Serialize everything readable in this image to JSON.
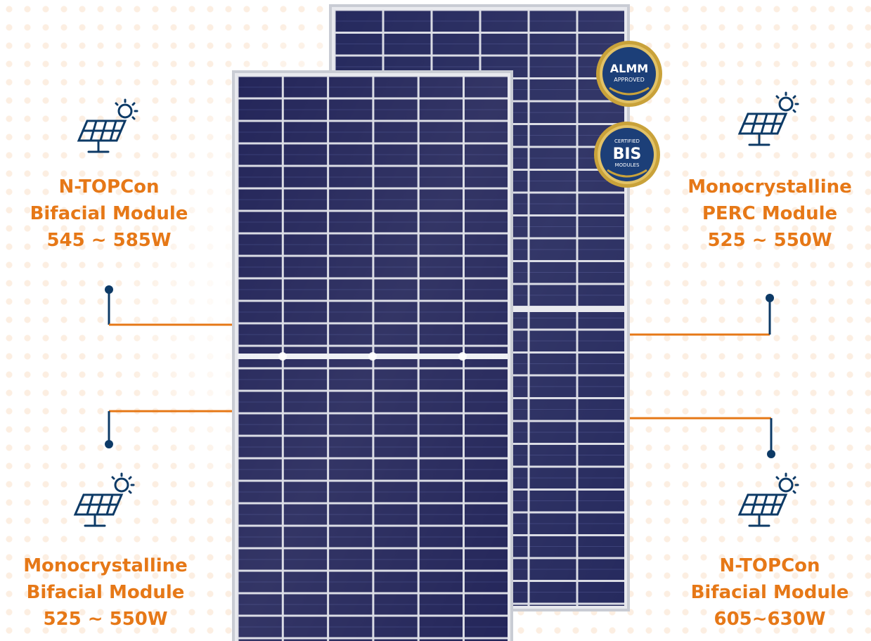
{
  "modules": [
    {
      "lines": [
        "N-TOPCon",
        "Bifacial Module",
        "545 ~ 585W"
      ],
      "icon": "solar-panel-sun-icon"
    },
    {
      "lines": [
        "Monocrystalline",
        "PERC Module",
        "525 ~ 550W"
      ],
      "icon": "solar-panel-sun-icon"
    },
    {
      "lines": [
        "Monocrystalline",
        "Bifacial Module",
        "525 ~ 550W"
      ],
      "icon": "solar-panel-sun-icon"
    },
    {
      "lines": [
        "N-TOPCon",
        "Bifacial Module",
        "605~630W"
      ],
      "icon": "solar-panel-sun-icon"
    }
  ],
  "badges": {
    "almm": {
      "main": "ALMM",
      "sub": "APPROVED"
    },
    "bis": {
      "top": "CERTIFIED",
      "main": "BIS",
      "bottom": "MODULES"
    }
  },
  "colors": {
    "accent": "#e67817",
    "navy": "#0d3a66",
    "panel_cell": "#24265a",
    "badge_gold": "#c9a23a",
    "badge_blue": "#1c3f78"
  }
}
